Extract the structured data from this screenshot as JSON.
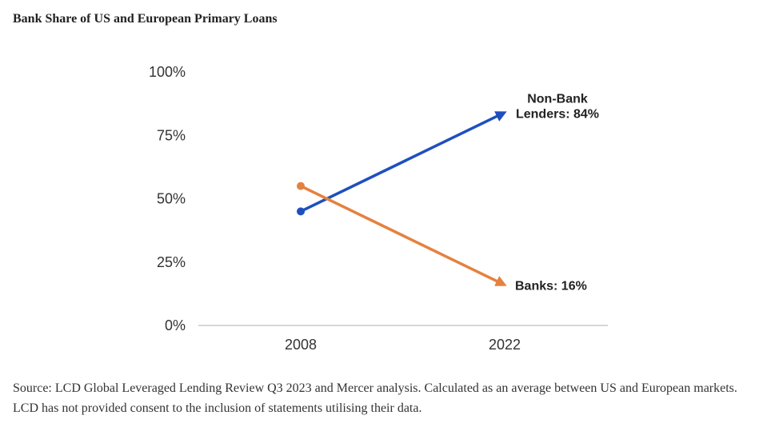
{
  "title": "Bank Share of US and European Primary Loans",
  "source": "Source: LCD Global Leveraged Lending Review Q3 2023 and Mercer analysis. Calculated as an average between US and European markets. LCD has not provided consent to the inclusion of statements utilising their data.",
  "chart_data": {
    "type": "line",
    "title": "Bank Share of US and European Primary Loans",
    "xlabel": "",
    "ylabel": "",
    "categories": [
      "2008",
      "2022"
    ],
    "ylim": [
      0,
      100
    ],
    "yticks": [
      0,
      25,
      50,
      75,
      100
    ],
    "ytick_labels": [
      "0%",
      "25%",
      "50%",
      "75%",
      "100%"
    ],
    "series": [
      {
        "name": "Non-Bank Lenders",
        "values": [
          45,
          84
        ],
        "color": "#1f4fbf",
        "end_label_lines": [
          "Non-Bank",
          "Lenders: 84%"
        ]
      },
      {
        "name": "Banks",
        "values": [
          55,
          16
        ],
        "color": "#e5813f",
        "end_label_lines": [
          "Banks: 16%"
        ]
      }
    ]
  }
}
